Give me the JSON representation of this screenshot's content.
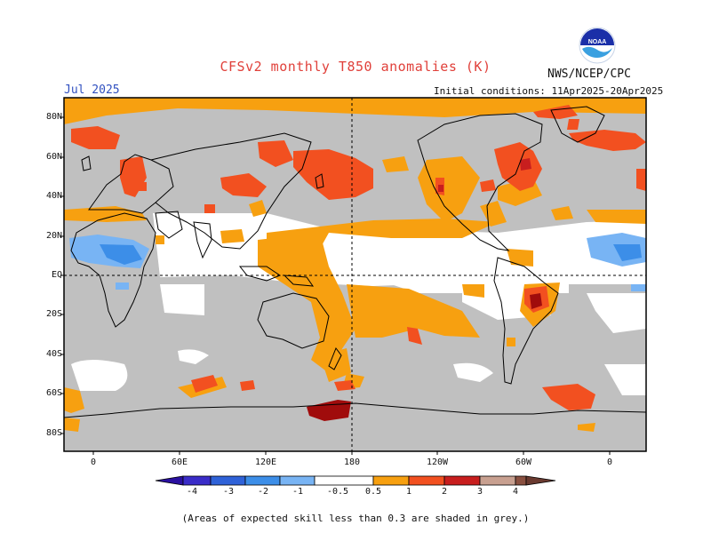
{
  "header": {
    "title": "CFSv2 monthly T850 anomalies (K)",
    "agency": "NWS/NCEP/CPC",
    "month": "Jul 2025",
    "initial_conditions": "Initial conditions: 11Apr2025-20Apr2025",
    "logo_text": "NOAA"
  },
  "map": {
    "lat_labels": [
      "80N",
      "60N",
      "40N",
      "20N",
      "EQ",
      "20S",
      "40S",
      "60S",
      "80S"
    ],
    "lon_labels": [
      "0",
      "60E",
      "120E",
      "180",
      "120W",
      "60W",
      "0"
    ],
    "grey_note": "(Areas of expected skill less than 0.3 are shaded in grey.)"
  },
  "legend": {
    "tick_labels": [
      "-4",
      "-3",
      "-2",
      "-1",
      "-0.5",
      "0.5",
      "1",
      "2",
      "3",
      "4"
    ],
    "colors": {
      "lt_-4": "#2a10a0",
      "-4_-3": "#3a2cc8",
      "-3_-2": "#2f62d8",
      "-2_-1": "#3c8ee8",
      "-1_-0.5": "#78b4f4",
      "neutral": "#ffffff",
      "0.5_1": "#f7a010",
      "1_2": "#f25020",
      "2_3": "#c81e1e",
      "3_4": "#a00c0c",
      "4_plus_a": "#c8a090",
      "4_plus_b": "#8a5040",
      "grey_low_skill": "#c0c0c0"
    }
  }
}
